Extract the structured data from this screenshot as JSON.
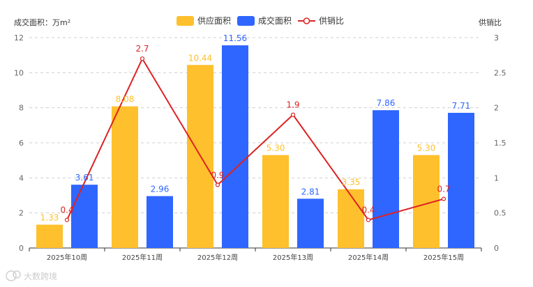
{
  "chart_data": {
    "type": "bar",
    "categories": [
      "2025年10周",
      "2025年11周",
      "2025年12周",
      "2025年13周",
      "2025年14周",
      "2025年15周"
    ],
    "series": [
      {
        "name": "供应面积",
        "type": "bar",
        "axis": "left",
        "color": "#FEC02C",
        "values": [
          1.33,
          8.08,
          10.44,
          5.3,
          3.35,
          5.3
        ],
        "labels": [
          "1.33",
          "8.08",
          "10.44",
          "5.30",
          "3.35",
          "5.30"
        ]
      },
      {
        "name": "成交面积",
        "type": "bar",
        "axis": "left",
        "color": "#2F66FF",
        "values": [
          3.61,
          2.96,
          11.56,
          2.81,
          7.86,
          7.71
        ],
        "labels": [
          "3.61",
          "2.96",
          "11.56",
          "2.81",
          "7.86",
          "7.71"
        ]
      },
      {
        "name": "供销比",
        "type": "line",
        "axis": "right",
        "color": "#DD2222",
        "values": [
          0.4,
          2.7,
          0.9,
          1.9,
          0.4,
          0.7
        ],
        "labels": [
          "0.4",
          "2.7",
          "0.9",
          "1.9",
          "0.4",
          "0.7"
        ]
      }
    ],
    "ylabel": "成交面积：万m²",
    "y2label": "供销比",
    "ylim": [
      0,
      12
    ],
    "yticks": [
      "0",
      "2",
      "4",
      "6",
      "8",
      "10",
      "12"
    ],
    "y2lim": [
      0,
      3
    ],
    "y2ticks": [
      "0",
      "0.5",
      "1",
      "1.5",
      "2",
      "2.5",
      "3"
    ],
    "grid": true,
    "legend_position": "top-center"
  },
  "watermark": {
    "text": "大数跨境",
    "icon": "brand-logo-icon"
  }
}
